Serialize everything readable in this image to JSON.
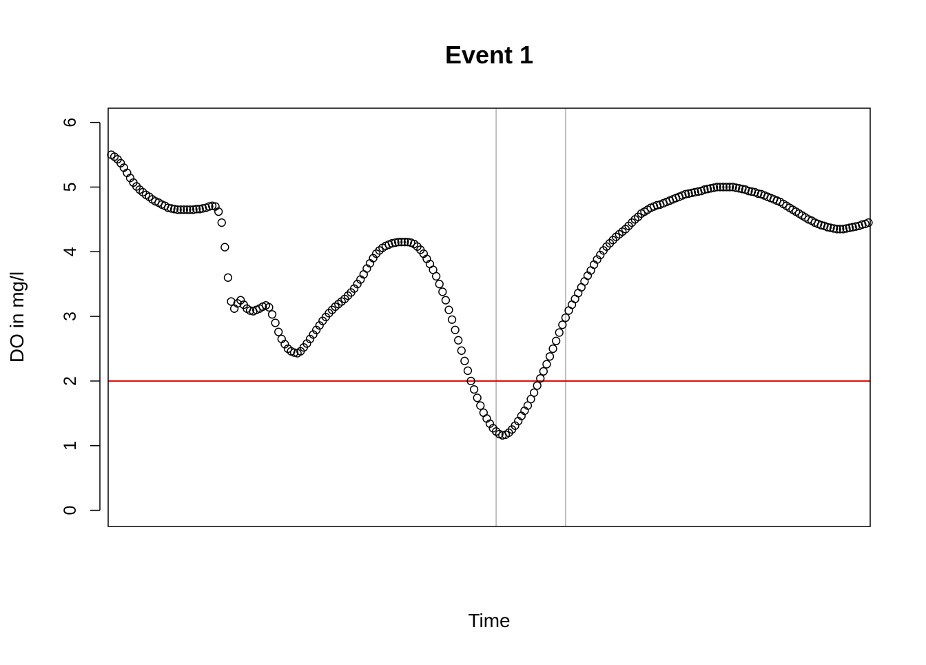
{
  "chart_data": {
    "type": "scatter",
    "title": "Event 1",
    "xlabel": "Time",
    "ylabel": "DO in mg/l",
    "ylim": [
      -0.25,
      6.22
    ],
    "y_ticks": [
      0,
      1,
      2,
      3,
      4,
      5,
      6
    ],
    "x_ticks_shown": false,
    "grid": false,
    "colors": {
      "points": "#000000",
      "threshold_line": "#dd0000",
      "event_lines": "#bebebe",
      "axes": "#000000",
      "background": "#ffffff"
    },
    "threshold": {
      "y": 2
    },
    "event_window": {
      "start_index": 122,
      "end_index": 144
    },
    "series": [
      {
        "marker": "open-circle",
        "y": [
          5.5,
          5.47,
          5.43,
          5.37,
          5.3,
          5.22,
          5.14,
          5.07,
          5.01,
          4.96,
          4.92,
          4.88,
          4.85,
          4.81,
          4.78,
          4.76,
          4.73,
          4.71,
          4.68,
          4.67,
          4.66,
          4.65,
          4.65,
          4.65,
          4.65,
          4.65,
          4.65,
          4.66,
          4.66,
          4.67,
          4.68,
          4.7,
          4.71,
          4.7,
          4.62,
          4.45,
          4.07,
          3.6,
          3.23,
          3.12,
          3.2,
          3.25,
          3.18,
          3.12,
          3.09,
          3.08,
          3.1,
          3.12,
          3.15,
          3.17,
          3.14,
          3.03,
          2.9,
          2.76,
          2.65,
          2.57,
          2.5,
          2.46,
          2.44,
          2.43,
          2.46,
          2.52,
          2.58,
          2.65,
          2.72,
          2.79,
          2.86,
          2.93,
          2.99,
          3.05,
          3.1,
          3.15,
          3.19,
          3.23,
          3.27,
          3.32,
          3.37,
          3.43,
          3.5,
          3.57,
          3.65,
          3.74,
          3.82,
          3.9,
          3.97,
          4.02,
          4.06,
          4.09,
          4.11,
          4.13,
          4.14,
          4.15,
          4.15,
          4.15,
          4.15,
          4.14,
          4.12,
          4.08,
          4.03,
          3.97,
          3.89,
          3.81,
          3.72,
          3.62,
          3.5,
          3.38,
          3.25,
          3.1,
          2.95,
          2.79,
          2.63,
          2.47,
          2.31,
          2.16,
          2.0,
          1.87,
          1.74,
          1.62,
          1.51,
          1.42,
          1.34,
          1.27,
          1.22,
          1.18,
          1.16,
          1.17,
          1.2,
          1.25,
          1.31,
          1.38,
          1.46,
          1.54,
          1.62,
          1.72,
          1.82,
          1.93,
          2.04,
          2.15,
          2.26,
          2.38,
          2.5,
          2.62,
          2.75,
          2.87,
          2.98,
          3.09,
          3.18,
          3.27,
          3.36,
          3.45,
          3.54,
          3.63,
          3.71,
          3.8,
          3.88,
          3.95,
          4.02,
          4.08,
          4.13,
          4.18,
          4.23,
          4.27,
          4.31,
          4.35,
          4.4,
          4.45,
          4.5,
          4.54,
          4.59,
          4.62,
          4.65,
          4.68,
          4.7,
          4.72,
          4.73,
          4.75,
          4.77,
          4.79,
          4.81,
          4.83,
          4.85,
          4.87,
          4.89,
          4.9,
          4.91,
          4.92,
          4.93,
          4.94,
          4.96,
          4.97,
          4.98,
          4.99,
          5.0,
          5.0,
          5.0,
          5.0,
          5.0,
          5.0,
          4.99,
          4.98,
          4.97,
          4.96,
          4.94,
          4.93,
          4.92,
          4.9,
          4.89,
          4.87,
          4.85,
          4.83,
          4.81,
          4.79,
          4.77,
          4.74,
          4.71,
          4.68,
          4.65,
          4.62,
          4.59,
          4.56,
          4.53,
          4.5,
          4.48,
          4.45,
          4.43,
          4.41,
          4.4,
          4.38,
          4.37,
          4.36,
          4.35,
          4.35,
          4.35,
          4.36,
          4.37,
          4.38,
          4.39,
          4.4,
          4.42,
          4.43,
          4.45
        ]
      }
    ]
  }
}
